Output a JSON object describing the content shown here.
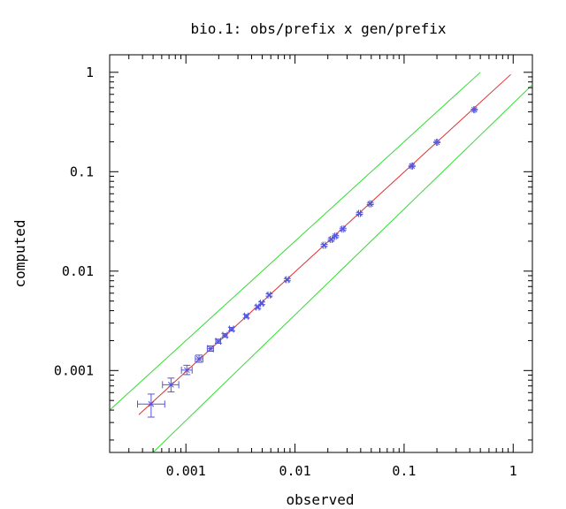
{
  "chart_data": {
    "type": "scatter",
    "title": "bio.1: obs/prefix x gen/prefix",
    "xlabel": "observed",
    "ylabel": "computed",
    "x_scale": "log",
    "y_scale": "log",
    "xlim": [
      0.0002,
      1.5
    ],
    "ylim": [
      0.00015,
      1.5
    ],
    "grid": false,
    "x_ticks": [
      {
        "value": 0.001,
        "label": "0.001"
      },
      {
        "value": 0.01,
        "label": "0.01"
      },
      {
        "value": 0.1,
        "label": "0.1"
      },
      {
        "value": 1,
        "label": "1"
      }
    ],
    "y_ticks": [
      {
        "value": 0.001,
        "label": "0.001"
      },
      {
        "value": 0.01,
        "label": "0.01"
      },
      {
        "value": 0.1,
        "label": "0.1"
      },
      {
        "value": 1,
        "label": "1"
      }
    ],
    "series": [
      {
        "kind": "points_with_error_bars",
        "color": "#5555dd",
        "points": [
          {
            "x": 0.00048,
            "y": 0.00046,
            "x_err": [
              0.00036,
              0.00064
            ],
            "y_err": [
              0.00034,
              0.00058
            ]
          },
          {
            "x": 0.00073,
            "y": 0.00072,
            "x_err": [
              0.00061,
              0.00086
            ],
            "y_err": [
              0.00061,
              0.00084
            ]
          },
          {
            "x": 0.00102,
            "y": 0.00101,
            "x_err": [
              0.00091,
              0.00114
            ],
            "y_err": [
              0.00091,
              0.00113
            ]
          },
          {
            "x": 0.00132,
            "y": 0.00131,
            "x_err": [
              0.00122,
              0.00143
            ],
            "y_err": [
              0.00121,
              0.00143
            ]
          },
          {
            "x": 0.00168,
            "y": 0.00166,
            "x_err": [
              0.00157,
              0.00179
            ],
            "y_err": [
              0.00156,
              0.00177
            ]
          },
          {
            "x": 0.00198,
            "y": 0.00197,
            "x_err": [
              0.00188,
              0.00208
            ],
            "y_err": [
              0.00188,
              0.00207
            ]
          },
          {
            "x": 0.00228,
            "y": 0.00226,
            "x_err": [
              0.00218,
              0.00239
            ],
            "y_err": [
              0.00216,
              0.00236
            ]
          },
          {
            "x": 0.00262,
            "y": 0.00261,
            "x_err": [
              0.00251,
              0.00273
            ],
            "y_err": [
              0.0025,
              0.00272
            ]
          },
          {
            "x": 0.00358,
            "y": 0.00352,
            "x_err": [
              0.00345,
              0.00372
            ],
            "y_err": [
              0.00338,
              0.00366
            ]
          },
          {
            "x": 0.00455,
            "y": 0.00435,
            "x_err": [
              0.00442,
              0.00468
            ],
            "y_err": [
              0.00422,
              0.00449
            ]
          },
          {
            "x": 0.00495,
            "y": 0.00475,
            "x_err": [
              0.00482,
              0.00508
            ],
            "y_err": [
              0.00461,
              0.00489
            ]
          },
          {
            "x": 0.0058,
            "y": 0.00575,
            "x_err": [
              0.00566,
              0.00594
            ],
            "y_err": [
              0.0056,
              0.0059
            ]
          },
          {
            "x": 0.0085,
            "y": 0.0082,
            "x_err": [
              0.0083,
              0.0087
            ],
            "y_err": [
              0.008,
              0.0084
            ]
          },
          {
            "x": 0.0185,
            "y": 0.0182,
            "x_err": [
              0.0181,
              0.0189
            ],
            "y_err": [
              0.0178,
              0.0186
            ]
          },
          {
            "x": 0.0215,
            "y": 0.0208,
            "x_err": [
              0.0211,
              0.0219
            ],
            "y_err": [
              0.0204,
              0.0212
            ]
          },
          {
            "x": 0.0235,
            "y": 0.0225,
            "x_err": [
              0.0231,
              0.0239
            ],
            "y_err": [
              0.0221,
              0.0229
            ]
          },
          {
            "x": 0.0275,
            "y": 0.0265,
            "x_err": [
              0.027,
              0.028
            ],
            "y_err": [
              0.026,
              0.027
            ]
          },
          {
            "x": 0.039,
            "y": 0.038,
            "x_err": [
              0.0383,
              0.0397
            ],
            "y_err": [
              0.0373,
              0.0387
            ]
          },
          {
            "x": 0.049,
            "y": 0.0475,
            "x_err": [
              0.0482,
              0.0498
            ],
            "y_err": [
              0.0467,
              0.0483
            ]
          },
          {
            "x": 0.118,
            "y": 0.114,
            "x_err": [
              0.1165,
              0.1195
            ],
            "y_err": [
              0.1125,
              0.1155
            ]
          },
          {
            "x": 0.2,
            "y": 0.198,
            "x_err": [
              0.1975,
              0.2025
            ],
            "y_err": [
              0.1955,
              0.2005
            ]
          },
          {
            "x": 0.44,
            "y": 0.42,
            "x_err": [
              0.435,
              0.445
            ],
            "y_err": [
              0.415,
              0.425
            ]
          }
        ]
      },
      {
        "kind": "line",
        "color": "#dd3333",
        "x": [
          0.00037,
          0.95
        ],
        "y": [
          0.00036,
          0.95
        ]
      },
      {
        "kind": "line",
        "color": "#33dd33",
        "x": [
          0.00017,
          0.5
        ],
        "y": [
          0.00034,
          1.0
        ]
      },
      {
        "kind": "line",
        "color": "#33dd33",
        "x": [
          0.00049,
          1.5
        ],
        "y": [
          0.000147,
          0.75
        ]
      }
    ]
  }
}
